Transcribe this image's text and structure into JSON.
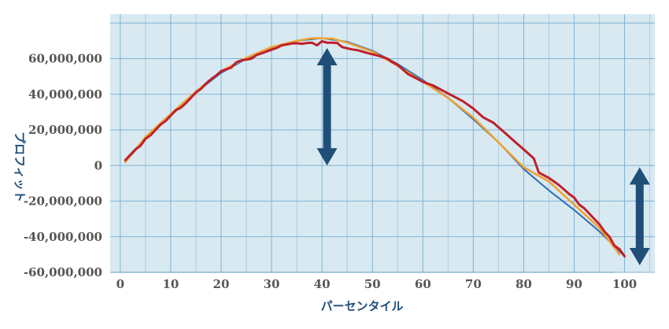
{
  "chart_data": {
    "type": "line",
    "xlabel": "パーセンタイル",
    "ylabel": "プロフィット",
    "xlim": [
      -2,
      106
    ],
    "ylim": [
      -60000000,
      85000000
    ],
    "xticks": [
      {
        "value": 0,
        "label": "0"
      },
      {
        "value": 10,
        "label": "10"
      },
      {
        "value": 20,
        "label": "20"
      },
      {
        "value": 30,
        "label": "30"
      },
      {
        "value": 40,
        "label": "40"
      },
      {
        "value": 50,
        "label": "50"
      },
      {
        "value": 60,
        "label": "60"
      },
      {
        "value": 70,
        "label": "70"
      },
      {
        "value": 80,
        "label": "80"
      },
      {
        "value": 90,
        "label": "90"
      },
      {
        "value": 100,
        "label": "100"
      }
    ],
    "yticks": [
      {
        "value": 60000000,
        "label": "60,000,000"
      },
      {
        "value": 40000000,
        "label": "40,000,000"
      },
      {
        "value": 20000000,
        "label": "20,000,000"
      },
      {
        "value": 0,
        "label": "0"
      },
      {
        "value": -20000000,
        "label": "-20,000,000"
      },
      {
        "value": -40000000,
        "label": "-40,000,000"
      },
      {
        "value": -60000000,
        "label": "-60,000,000"
      }
    ],
    "grid": true,
    "legend": "none",
    "series": [
      {
        "color": "#2e6db4",
        "x": [
          1,
          5,
          10,
          15,
          20,
          25,
          30,
          35,
          40,
          45,
          50,
          55,
          60,
          65,
          70,
          75,
          80,
          85,
          90,
          95,
          100
        ],
        "y": [
          2000000,
          15000000,
          28000000,
          41000000,
          52000000,
          60000000,
          66000000,
          70000000,
          71500000,
          69500000,
          64500000,
          57000000,
          48000000,
          38000000,
          26000000,
          13000000,
          -2000000,
          -14000000,
          -25000000,
          -37000000,
          -51000000
        ]
      },
      {
        "color": "#f0a030",
        "x": [
          1,
          5,
          10,
          15,
          20,
          25,
          30,
          35,
          38,
          42,
          45,
          50,
          55,
          60,
          65,
          70,
          75,
          80,
          85,
          90,
          95,
          99
        ],
        "y": [
          2000000,
          16000000,
          29000000,
          41500000,
          53000000,
          60500000,
          66500000,
          70000000,
          71500000,
          71300000,
          69000000,
          64000000,
          56000000,
          47000000,
          38000000,
          27000000,
          13000000,
          -1000000,
          -9000000,
          -22000000,
          -35000000,
          -50000000
        ]
      },
      {
        "color": "#c0202a",
        "x": [
          1,
          2,
          3,
          4,
          5,
          6,
          7,
          8,
          9,
          10,
          11,
          12,
          13,
          14,
          15,
          16,
          17,
          18,
          19,
          20,
          21,
          22,
          23,
          24,
          25,
          26,
          27,
          28,
          29,
          30,
          31,
          32,
          33,
          34,
          35,
          36,
          37,
          38,
          39,
          40,
          41,
          42,
          43,
          44,
          45,
          46,
          47,
          48,
          49,
          50,
          51,
          52,
          53,
          54,
          55,
          56,
          57,
          58,
          59,
          60,
          62,
          64,
          66,
          68,
          70,
          72,
          74,
          76,
          78,
          80,
          82,
          83,
          84,
          85,
          86,
          87,
          88,
          89,
          90,
          91,
          92,
          93,
          94,
          95,
          96,
          97,
          98,
          99,
          100
        ],
        "y": [
          3000000,
          6000000,
          9000000,
          11000000,
          15000000,
          17000000,
          20000000,
          23000000,
          25000000,
          28000000,
          31000000,
          32500000,
          35000000,
          38000000,
          41000000,
          43000000,
          46000000,
          48500000,
          50500000,
          53000000,
          54000000,
          55000000,
          58000000,
          59000000,
          59500000,
          60000000,
          62000000,
          63000000,
          64000000,
          65000000,
          66000000,
          67500000,
          68000000,
          68500000,
          68700000,
          68400000,
          68800000,
          69000000,
          67500000,
          69800000,
          69000000,
          69000000,
          68800000,
          66500000,
          65800000,
          65200000,
          64800000,
          64000000,
          63200000,
          62500000,
          61800000,
          61000000,
          60000000,
          58000000,
          56500000,
          54000000,
          51500000,
          50000000,
          48500000,
          47000000,
          45000000,
          42000000,
          39000000,
          36000000,
          32000000,
          27000000,
          24000000,
          19000000,
          14000000,
          9000000,
          4000000,
          -4000000,
          -5500000,
          -7000000,
          -9000000,
          -11000000,
          -13500000,
          -16000000,
          -18000000,
          -22000000,
          -24000000,
          -27000000,
          -30000000,
          -33000000,
          -37000000,
          -40000000,
          -45000000,
          -47000000,
          -51000000
        ]
      }
    ],
    "markers": [
      {
        "type": "double-arrow",
        "x": 41,
        "y_from": 0,
        "y_to": 66000000,
        "color": "#1f4e79"
      },
      {
        "type": "double-arrow",
        "x": 103,
        "y_from": -56000000,
        "y_to": -1000000,
        "color": "#1f4e79"
      }
    ]
  }
}
